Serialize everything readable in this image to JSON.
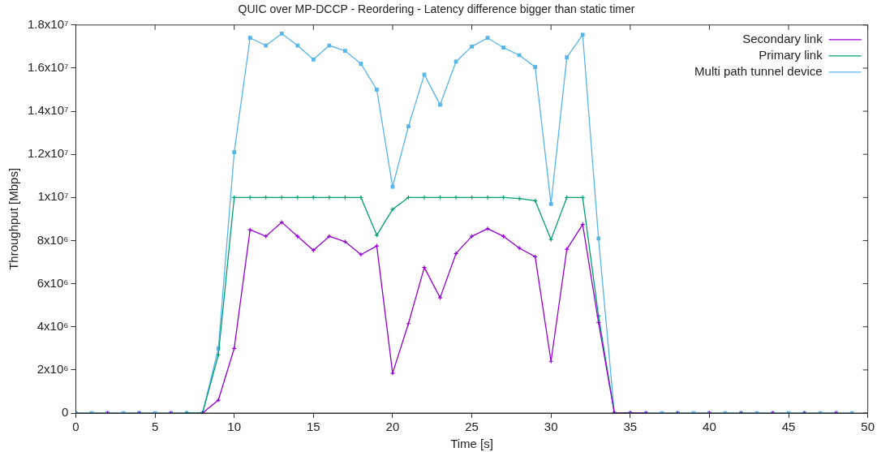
{
  "chart_data": {
    "type": "line",
    "title": "QUIC over MP-DCCP - Reordering - Latency difference bigger than static timer",
    "xlabel": "Time [s]",
    "ylabel": "Throughput [Mbps]",
    "x": [
      0,
      1,
      2,
      3,
      4,
      5,
      6,
      7,
      8,
      9,
      10,
      11,
      12,
      13,
      14,
      15,
      16,
      17,
      18,
      19,
      20,
      21,
      22,
      23,
      24,
      25,
      26,
      27,
      28,
      29,
      30,
      31,
      32,
      33,
      34,
      35,
      36,
      37,
      38,
      39,
      40,
      41,
      42,
      43,
      44,
      45,
      46,
      47,
      48,
      49
    ],
    "series": [
      {
        "name": "Secondary link",
        "color": "#9400d3",
        "marker": "cross",
        "values": [
          null,
          null,
          0,
          null,
          0,
          null,
          0,
          null,
          0,
          600000,
          3000000,
          8500000,
          8200000,
          8850000,
          8200000,
          7550000,
          8200000,
          7950000,
          7350000,
          7750000,
          1850000,
          4150000,
          6750000,
          5350000,
          7400000,
          8200000,
          8550000,
          8200000,
          7650000,
          7250000,
          2400000,
          7600000,
          8750000,
          4200000,
          0,
          0,
          0,
          null,
          0,
          null,
          0,
          null,
          0,
          null,
          0,
          null,
          0,
          null,
          0,
          null
        ]
      },
      {
        "name": "Primary link",
        "color": "#009e73",
        "marker": "cross",
        "values": [
          null,
          null,
          null,
          null,
          null,
          null,
          null,
          0,
          0,
          2700000,
          10000000,
          10000000,
          10000000,
          10000000,
          10000000,
          10000000,
          10000000,
          10000000,
          10000000,
          8250000,
          9450000,
          10000000,
          10000000,
          10000000,
          10000000,
          10000000,
          10000000,
          10000000,
          9950000,
          9850000,
          8050000,
          10000000,
          10000000,
          4500000,
          0,
          0,
          null,
          null,
          null,
          null,
          null,
          null,
          null,
          null,
          null,
          null,
          null,
          null,
          null,
          null
        ]
      },
      {
        "name": "Multi path tunnel device",
        "color": "#56b4e9",
        "marker": "square",
        "values": [
          0,
          0,
          0,
          0,
          0,
          0,
          0,
          0,
          0,
          3000000,
          12100000,
          17400000,
          17050000,
          17600000,
          17050000,
          16400000,
          17050000,
          16800000,
          16200000,
          15000000,
          10500000,
          13300000,
          15700000,
          14300000,
          16300000,
          17000000,
          17400000,
          16950000,
          16600000,
          16050000,
          9700000,
          16500000,
          17550000,
          8100000,
          0,
          0,
          0,
          0,
          0,
          0,
          0,
          0,
          0,
          0,
          0,
          0,
          0,
          0,
          0,
          0
        ]
      }
    ],
    "xlim": [
      0,
      50
    ],
    "xticks": [
      0,
      5,
      10,
      15,
      20,
      25,
      30,
      35,
      40,
      45,
      50
    ],
    "ylim": [
      0,
      18000000
    ],
    "yticks": [
      0,
      {
        "value": 2000000,
        "label": "2x10⁶"
      },
      {
        "value": 4000000,
        "label": "4x10⁶"
      },
      {
        "value": 6000000,
        "label": "6x10⁶"
      },
      {
        "value": 8000000,
        "label": "8x10⁶"
      },
      {
        "value": 10000000,
        "label": "1x10⁷"
      },
      {
        "value": 12000000,
        "label": "1.2x10⁷"
      },
      {
        "value": 14000000,
        "label": "1.4x10⁷"
      },
      {
        "value": 16000000,
        "label": "1.6x10⁷"
      },
      {
        "value": 18000000,
        "label": "1.8x10⁷"
      }
    ],
    "grid": false,
    "legend": "top right",
    "line_style": "solid"
  }
}
